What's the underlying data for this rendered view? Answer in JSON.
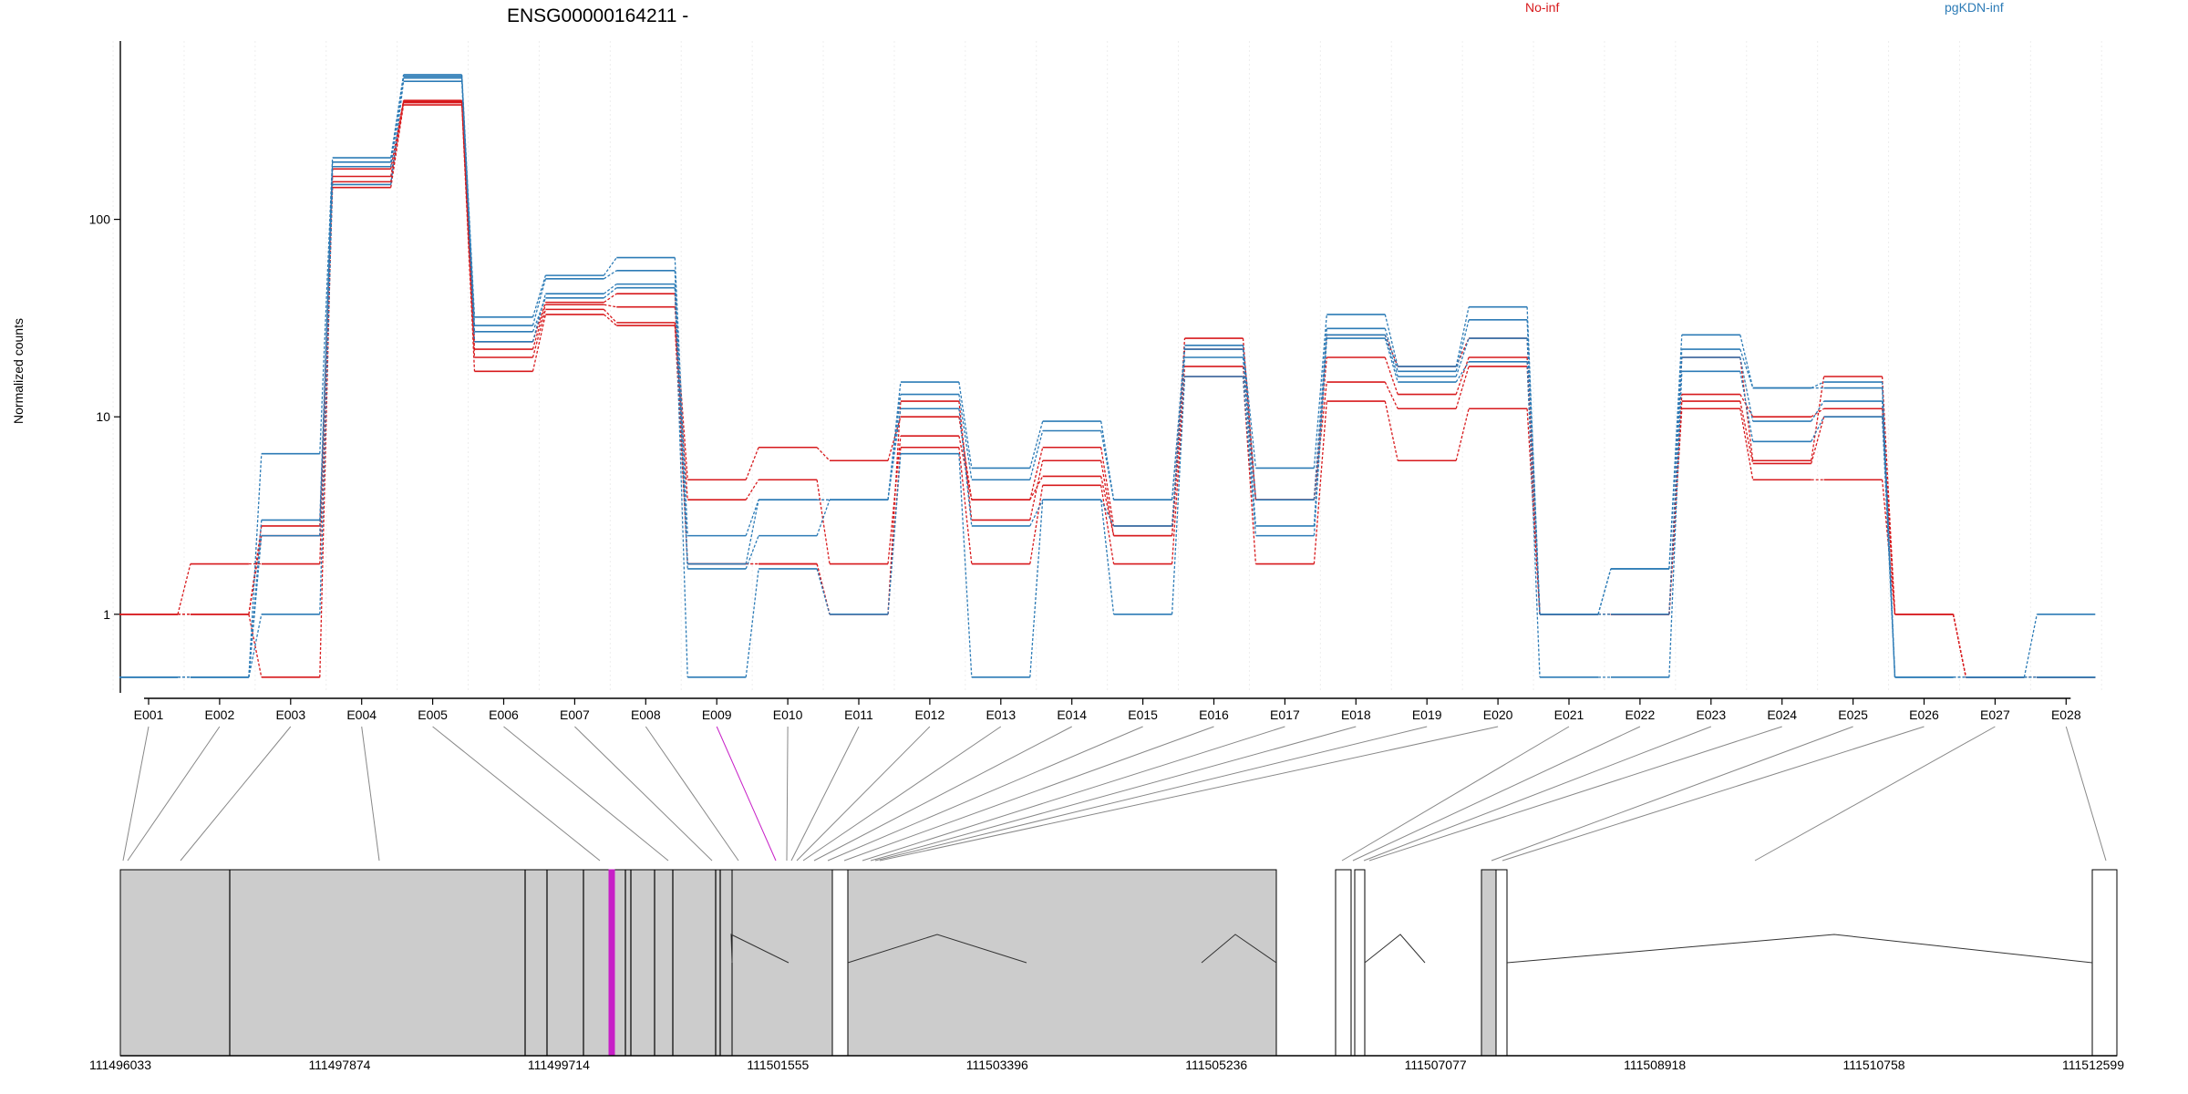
{
  "chart_data": {
    "type": "line",
    "title": "ENSG00000164211 -",
    "ylabel": "Normalized counts",
    "yscale": "log",
    "ylim": [
      0.4,
      800
    ],
    "yticks": [
      {
        "v": 1,
        "label": "1"
      },
      {
        "v": 10,
        "label": "10"
      },
      {
        "v": 100,
        "label": "100"
      }
    ],
    "grid": false,
    "legend": [
      {
        "name": "No-inf",
        "color": "#D7191C"
      },
      {
        "name": "pgKDN-inf",
        "color": "#2C7BB6"
      }
    ],
    "categories": [
      "E001",
      "E002",
      "E003",
      "E004",
      "E005",
      "E006",
      "E007",
      "E008",
      "E009",
      "E010",
      "E011",
      "E012",
      "E013",
      "E014",
      "E015",
      "E016",
      "E017",
      "E018",
      "E019",
      "E020",
      "E021",
      "E022",
      "E023",
      "E024",
      "E025",
      "E026",
      "E027",
      "E028"
    ],
    "highlight": {
      "exon": "E009",
      "color": "#C71FC7"
    },
    "series": [
      {
        "group": "No-inf",
        "values": [
          1.0,
          1.8,
          1.8,
          145,
          380,
          17,
          33,
          29,
          1.8,
          1.8,
          1.0,
          7.0,
          1.8,
          4.5,
          1.8,
          16,
          1.8,
          12,
          6.0,
          11,
          1.0,
          1.0,
          11,
          4.8,
          4.8,
          1.0,
          0.48,
          0.48
        ]
      },
      {
        "group": "No-inf",
        "values": [
          1.0,
          1.0,
          2.5,
          155,
          390,
          20,
          35,
          30,
          3.8,
          4.8,
          1.8,
          8.0,
          3.8,
          5.0,
          2.5,
          18,
          3.8,
          15,
          11,
          18,
          1.0,
          1.0,
          12,
          5.8,
          10,
          1.0,
          0.48,
          0.48
        ]
      },
      {
        "group": "No-inf",
        "values": [
          1.0,
          1.0,
          2.8,
          165,
          395,
          22,
          37,
          36,
          4.8,
          7.0,
          6.0,
          10,
          3.8,
          7.0,
          2.8,
          22,
          3.8,
          20,
          13,
          20,
          1.0,
          1.0,
          13,
          10,
          11,
          1.0,
          0.48,
          0.48
        ]
      },
      {
        "group": "No-inf",
        "values": [
          1.0,
          1.0,
          0.48,
          180,
          400,
          24,
          38,
          42,
          1.8,
          1.8,
          1.0,
          12,
          3.0,
          6.0,
          2.5,
          25,
          3.8,
          26,
          18,
          25,
          1.0,
          1.0,
          20,
          6.0,
          16,
          1.0,
          0.48,
          0.48
        ]
      },
      {
        "group": "pgKDN-inf",
        "values": [
          0.48,
          0.48,
          1.0,
          150,
          500,
          24,
          42,
          47,
          0.48,
          1.7,
          1.0,
          6.5,
          0.48,
          3.8,
          1.0,
          16,
          2.5,
          25,
          15,
          19,
          0.48,
          0.48,
          17,
          7.5,
          10,
          0.48,
          0.48,
          1.0
        ]
      },
      {
        "group": "pgKDN-inf",
        "values": [
          0.48,
          0.48,
          2.5,
          185,
          520,
          27,
          40,
          45,
          1.7,
          2.5,
          3.8,
          11,
          2.8,
          3.8,
          2.8,
          20,
          2.8,
          26,
          16,
          25,
          1.0,
          1.0,
          20,
          9.5,
          12,
          0.48,
          0.48,
          0.48
        ]
      },
      {
        "group": "pgKDN-inf",
        "values": [
          0.48,
          0.48,
          3.0,
          195,
          530,
          29,
          50,
          55,
          1.8,
          3.8,
          3.8,
          13,
          4.8,
          8.5,
          3.8,
          22,
          3.8,
          28,
          17,
          31,
          1.0,
          1.7,
          22,
          14,
          14,
          0.48,
          0.48,
          0.48
        ]
      },
      {
        "group": "pgKDN-inf",
        "values": [
          0.48,
          0.48,
          6.5,
          205,
          540,
          32,
          52,
          64,
          2.5,
          3.8,
          3.8,
          15,
          5.5,
          9.5,
          3.8,
          23,
          5.5,
          33,
          18,
          36,
          1.0,
          1.7,
          26,
          14,
          15,
          0.48,
          0.48,
          0.48
        ]
      }
    ],
    "genomic_axis": {
      "ticks": [
        "111496033",
        "111497874",
        "111499714",
        "111501555",
        "111503396",
        "111505236",
        "111507077",
        "111508918",
        "111510758",
        "111512599"
      ]
    }
  }
}
